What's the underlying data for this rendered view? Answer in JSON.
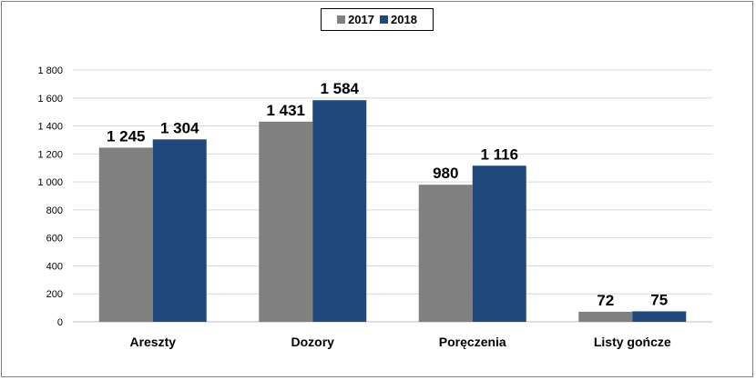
{
  "chart_data": {
    "type": "bar",
    "categories": [
      "Areszty",
      "Dozory",
      "Poręczenia",
      "Listy gończe"
    ],
    "series": [
      {
        "name": "2017",
        "values": [
          1245,
          1431,
          980,
          72
        ],
        "labels": [
          "1 245",
          "1 431",
          "980",
          "72"
        ],
        "color": "#808080"
      },
      {
        "name": "2018",
        "values": [
          1304,
          1584,
          1116,
          75
        ],
        "labels": [
          "1 304",
          "1 584",
          "1 116",
          "75"
        ],
        "color": "#1f497d"
      }
    ],
    "ylim": [
      0,
      1800
    ],
    "yticks": [
      0,
      200,
      400,
      600,
      800,
      1000,
      1200,
      1400,
      1600,
      1800
    ],
    "ytick_labels": [
      "0",
      "200",
      "400",
      "600",
      "800",
      "1 000",
      "1 200",
      "1 400",
      "1 600",
      "1 800"
    ],
    "grid": true,
    "legend_position": "top-center"
  }
}
